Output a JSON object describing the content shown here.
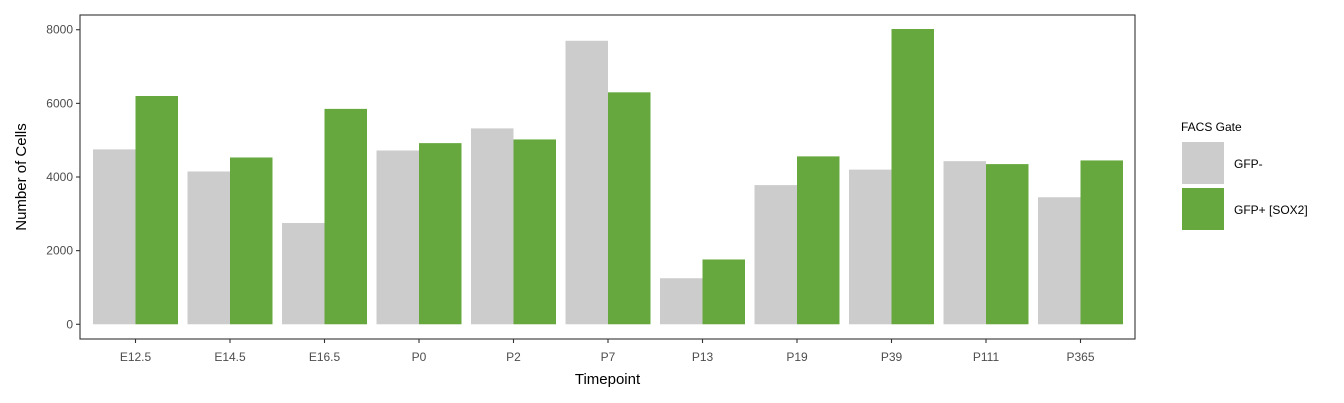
{
  "chart_data": {
    "type": "bar",
    "xlabel": "Timepoint",
    "ylabel": "Number of Cells",
    "categories": [
      "E12.5",
      "E14.5",
      "E16.5",
      "P0",
      "P2",
      "P7",
      "P13",
      "P19",
      "P39",
      "P111",
      "P365"
    ],
    "series": [
      {
        "name": "GFP-",
        "color": "#cccccc",
        "values": [
          4750,
          4150,
          2750,
          4720,
          5320,
          7700,
          1250,
          3780,
          4200,
          4430,
          3450
        ]
      },
      {
        "name": "GFP+ [SOX2]",
        "color": "#66a83d",
        "values": [
          6200,
          4530,
          5850,
          4920,
          5020,
          6300,
          1760,
          4560,
          8020,
          4350,
          4450
        ]
      }
    ],
    "ylim": [
      -400,
      8400
    ],
    "yticks": [
      0,
      2000,
      4000,
      6000,
      8000
    ],
    "grid": false,
    "legend": {
      "title": "FACS Gate",
      "position": "right"
    }
  }
}
